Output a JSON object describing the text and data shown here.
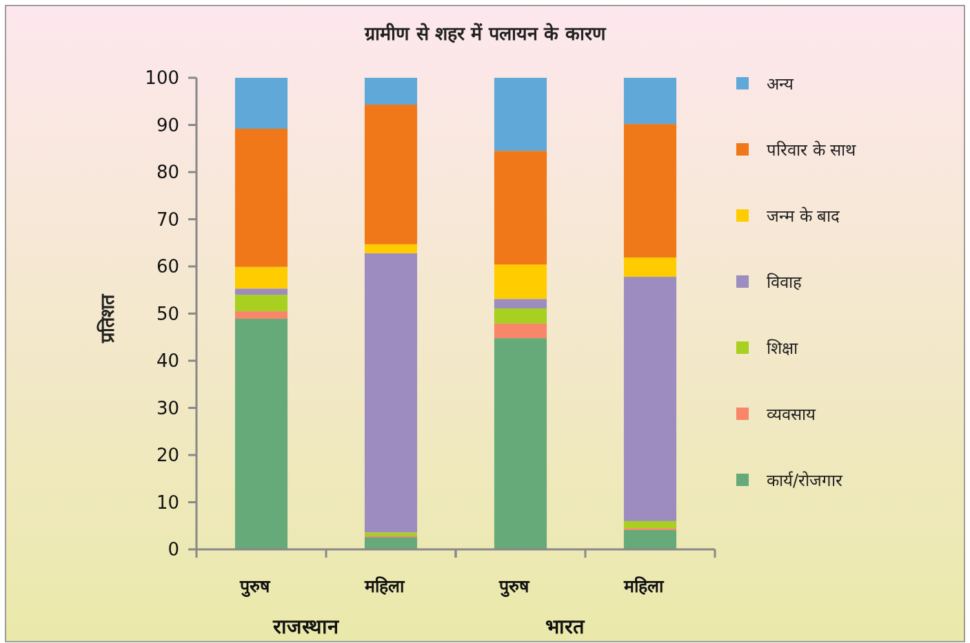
{
  "chart_data": {
    "type": "bar",
    "stacked": true,
    "title": "ग्रामीण से शहर में पलायन के कारण",
    "ylabel": "प्रतिशत",
    "categories": [
      "पुरुष",
      "महिला",
      "पुरुष",
      "महिला"
    ],
    "annotations": [
      "राजस्थान",
      "भारत"
    ],
    "ylim": [
      0,
      100
    ],
    "yticks": [
      0,
      10,
      20,
      30,
      40,
      50,
      60,
      70,
      80,
      90,
      100
    ],
    "grid": false,
    "legend": "right",
    "series": [
      {
        "name": "कार्य/रोजगार",
        "color": "#66aa7a",
        "values": [
          48.9,
          2.6,
          44.8,
          4.1
        ]
      },
      {
        "name": "व्यवसाय",
        "color": "#f8866a",
        "values": [
          1.6,
          0.3,
          3.1,
          0.4
        ]
      },
      {
        "name": "शिक्षा",
        "color": "#a8d020",
        "values": [
          3.5,
          0.7,
          3.2,
          1.5
        ]
      },
      {
        "name": "विवाह",
        "color": "#9c8cc0",
        "values": [
          1.3,
          59.2,
          2.0,
          51.8
        ]
      },
      {
        "name": "जन्म के बाद",
        "color": "#ffcc00",
        "values": [
          4.6,
          1.9,
          7.3,
          4.1
        ]
      },
      {
        "name": "परिवार के साथ",
        "color": "#f07818",
        "values": [
          29.3,
          29.6,
          24.1,
          28.3
        ]
      },
      {
        "name": "अन्य",
        "color": "#5fa8d8",
        "values": [
          10.8,
          5.7,
          15.5,
          9.8
        ]
      }
    ]
  }
}
